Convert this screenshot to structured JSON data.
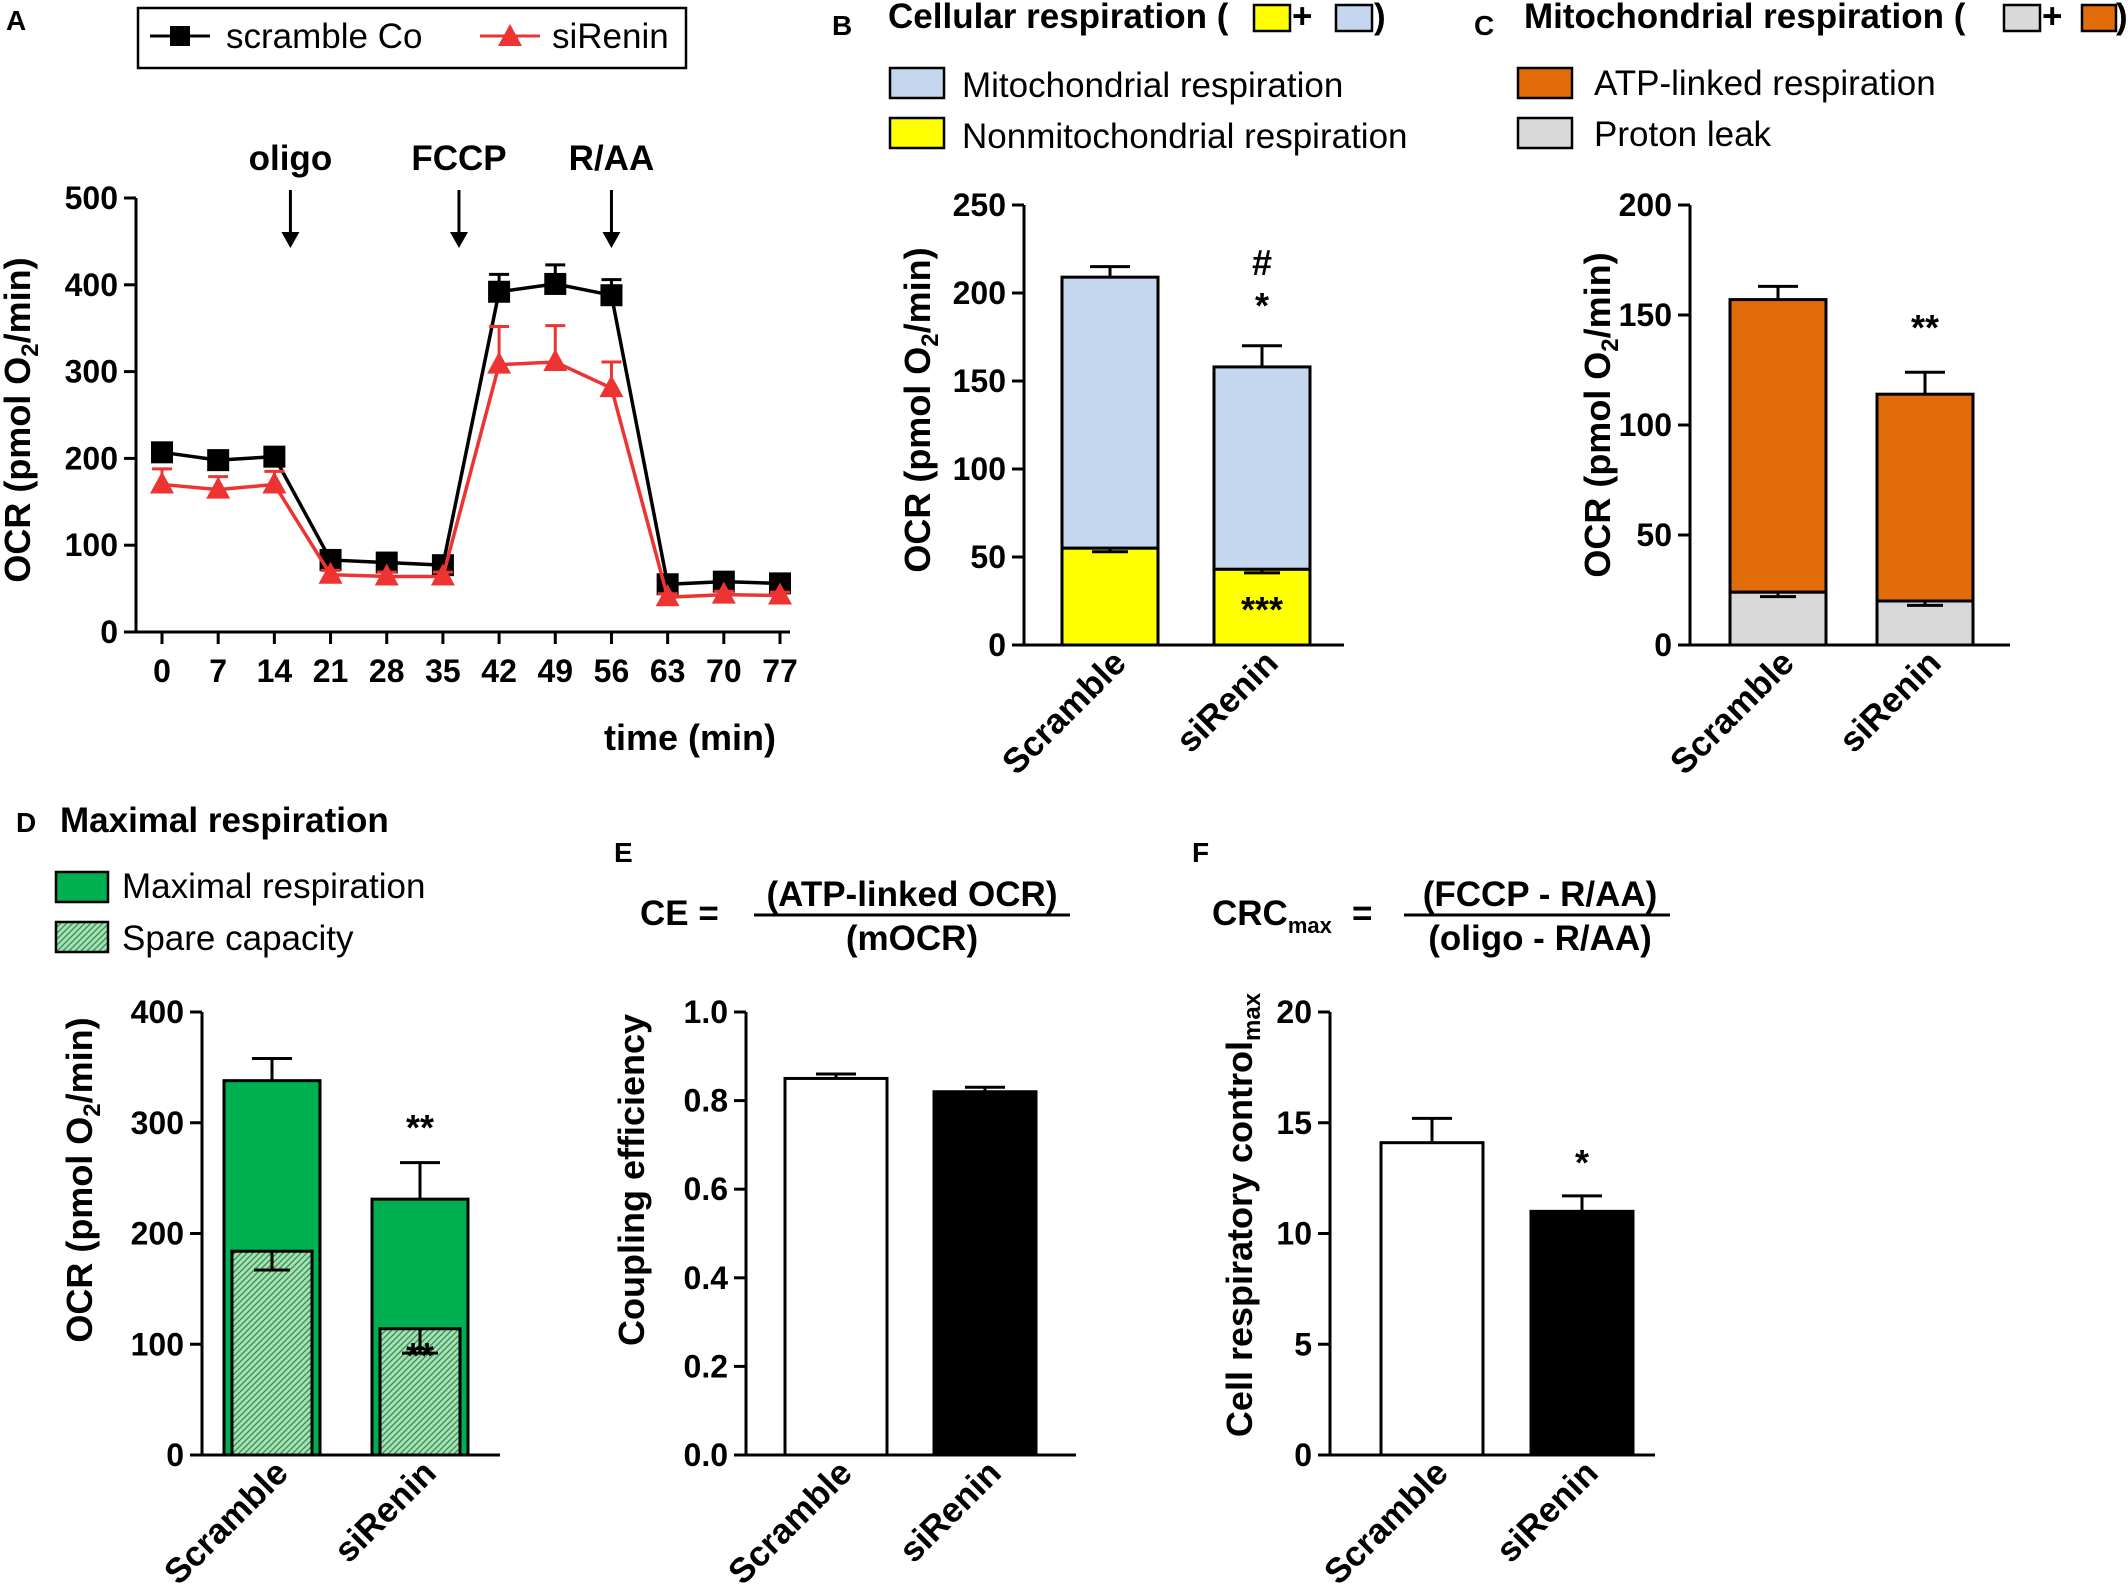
{
  "colors": {
    "scramble_line": "#000000",
    "sirenin_line": "#ee3333",
    "mito": "#c5d7ee",
    "nonmito": "#ffff00",
    "atp": "#e36c0a",
    "leak": "#d9d9d9",
    "max": "#00b050",
    "spare": "#a8dfb5",
    "ce_scramble": "#ffffff",
    "ce_sirenin": "#000000"
  },
  "chart_data": [
    {
      "panel": "A",
      "type": "line",
      "title": "",
      "xlabel": "time (min)",
      "ylabel": "OCR (pmol O2/min)",
      "xlim": [
        0,
        77
      ],
      "ylim": [
        0,
        500
      ],
      "x_ticks": [
        0,
        7,
        14,
        21,
        28,
        35,
        42,
        49,
        56,
        63,
        70,
        77
      ],
      "y_ticks": [
        0,
        100,
        200,
        300,
        400,
        500
      ],
      "legend_placement": "top",
      "annotations": [
        {
          "text": "oligo",
          "x": 16
        },
        {
          "text": "FCCP",
          "x": 37
        },
        {
          "text": "R/AA",
          "x": 56
        }
      ],
      "series": [
        {
          "name": "scramble Co",
          "marker": "square",
          "x": [
            0,
            7,
            14,
            21,
            28,
            35,
            42,
            49,
            56,
            63,
            70,
            77
          ],
          "values": [
            207,
            198,
            202,
            83,
            80,
            77,
            392,
            401,
            388,
            55,
            58,
            56
          ],
          "errors": [
            6,
            6,
            6,
            5,
            5,
            5,
            20,
            22,
            18,
            4,
            4,
            4
          ]
        },
        {
          "name": "siRenin",
          "marker": "triangle",
          "x": [
            0,
            7,
            14,
            21,
            28,
            35,
            42,
            49,
            56,
            63,
            70,
            77
          ],
          "values": [
            170,
            164,
            170,
            66,
            64,
            64,
            308,
            311,
            281,
            40,
            43,
            42
          ],
          "errors": [
            18,
            15,
            15,
            5,
            5,
            5,
            44,
            42,
            30,
            4,
            4,
            4
          ]
        }
      ]
    },
    {
      "panel": "B",
      "type": "bar",
      "title": "Cellular respiration (",
      "title_plus": "+",
      "title_close": ")",
      "ylabel": "OCR (pmol O2/min)",
      "ylim": [
        0,
        250
      ],
      "y_ticks": [
        0,
        50,
        100,
        150,
        200,
        250
      ],
      "categories": [
        "Scramble",
        "siRenin"
      ],
      "stacked": true,
      "series": [
        {
          "name": "Nonmitochondrial respiration",
          "values": [
            55,
            43
          ],
          "errors": [
            2,
            2
          ]
        },
        {
          "name": "Mitochondrial respiration",
          "values": [
            154,
            115
          ],
          "totals": [
            209,
            158
          ],
          "errors": [
            6,
            12
          ]
        }
      ],
      "significance": [
        {
          "category": "siRenin",
          "position": "above",
          "lines": [
            "#",
            "*"
          ]
        },
        {
          "category": "siRenin",
          "position": "inside-bottom",
          "lines": [
            "***"
          ]
        }
      ]
    },
    {
      "panel": "C",
      "type": "bar",
      "title": "Mitochondrial respiration (",
      "title_plus": "+",
      "title_close": ")",
      "ylabel": "OCR (pmol O2/min)",
      "ylim": [
        0,
        200
      ],
      "y_ticks": [
        0,
        50,
        100,
        150,
        200
      ],
      "categories": [
        "Scramble",
        "siRenin"
      ],
      "stacked": true,
      "series": [
        {
          "name": "Proton leak",
          "values": [
            24,
            20
          ],
          "errors": [
            2,
            2
          ]
        },
        {
          "name": "ATP-linked respiration",
          "values": [
            133,
            94
          ],
          "totals": [
            157,
            114
          ],
          "errors": [
            6,
            10
          ]
        }
      ],
      "significance": [
        {
          "category": "siRenin",
          "position": "above",
          "lines": [
            "**"
          ]
        }
      ]
    },
    {
      "panel": "D",
      "type": "bar",
      "title": "Maximal respiration",
      "ylabel": "OCR (pmol O2/min)",
      "ylim": [
        0,
        400
      ],
      "y_ticks": [
        0,
        100,
        200,
        300,
        400
      ],
      "categories": [
        "Scramble",
        "siRenin"
      ],
      "overlaid": true,
      "series": [
        {
          "name": "Maximal respiration",
          "values": [
            338,
            231
          ],
          "errors": [
            20,
            33
          ]
        },
        {
          "name": "Spare capacity",
          "values": [
            184,
            114
          ],
          "errors": [
            17,
            22
          ]
        }
      ],
      "significance": [
        {
          "category": "siRenin",
          "position": "above",
          "lines": [
            "**"
          ]
        },
        {
          "category": "siRenin",
          "position": "inside-bottom",
          "lines": [
            "**"
          ]
        }
      ]
    },
    {
      "panel": "E",
      "type": "bar",
      "equation_lhs": "CE =",
      "equation_num": "(ATP-linked OCR)",
      "equation_den": "(mOCR)",
      "ylabel": "Coupling efficiency",
      "ylim": [
        0,
        1.0
      ],
      "y_ticks": [
        "0.0",
        "0.2",
        "0.4",
        "0.6",
        "0.8",
        "1.0"
      ],
      "categories": [
        "Scramble",
        "siRenin"
      ],
      "values": [
        0.85,
        0.82
      ],
      "errors": [
        0.01,
        0.01
      ]
    },
    {
      "panel": "F",
      "type": "bar",
      "equation_lhs": "CRC",
      "equation_lhs_sub": "max",
      "equation_eq": "=",
      "equation_num": "(FCCP - R/AA)",
      "equation_den": "(oligo - R/AA)",
      "ylabel": "Cell respiratory control",
      "ylabel_sub": "max",
      "ylim": [
        0,
        20
      ],
      "y_ticks": [
        0,
        5,
        10,
        15,
        20
      ],
      "categories": [
        "Scramble",
        "siRenin"
      ],
      "values": [
        14.1,
        11.0
      ],
      "errors": [
        1.1,
        0.7
      ],
      "significance": [
        {
          "category": "siRenin",
          "position": "above",
          "lines": [
            "*"
          ]
        }
      ]
    }
  ],
  "labels": {
    "A": "A",
    "B": "B",
    "C": "C",
    "D": "D",
    "E": "E",
    "F": "F"
  }
}
